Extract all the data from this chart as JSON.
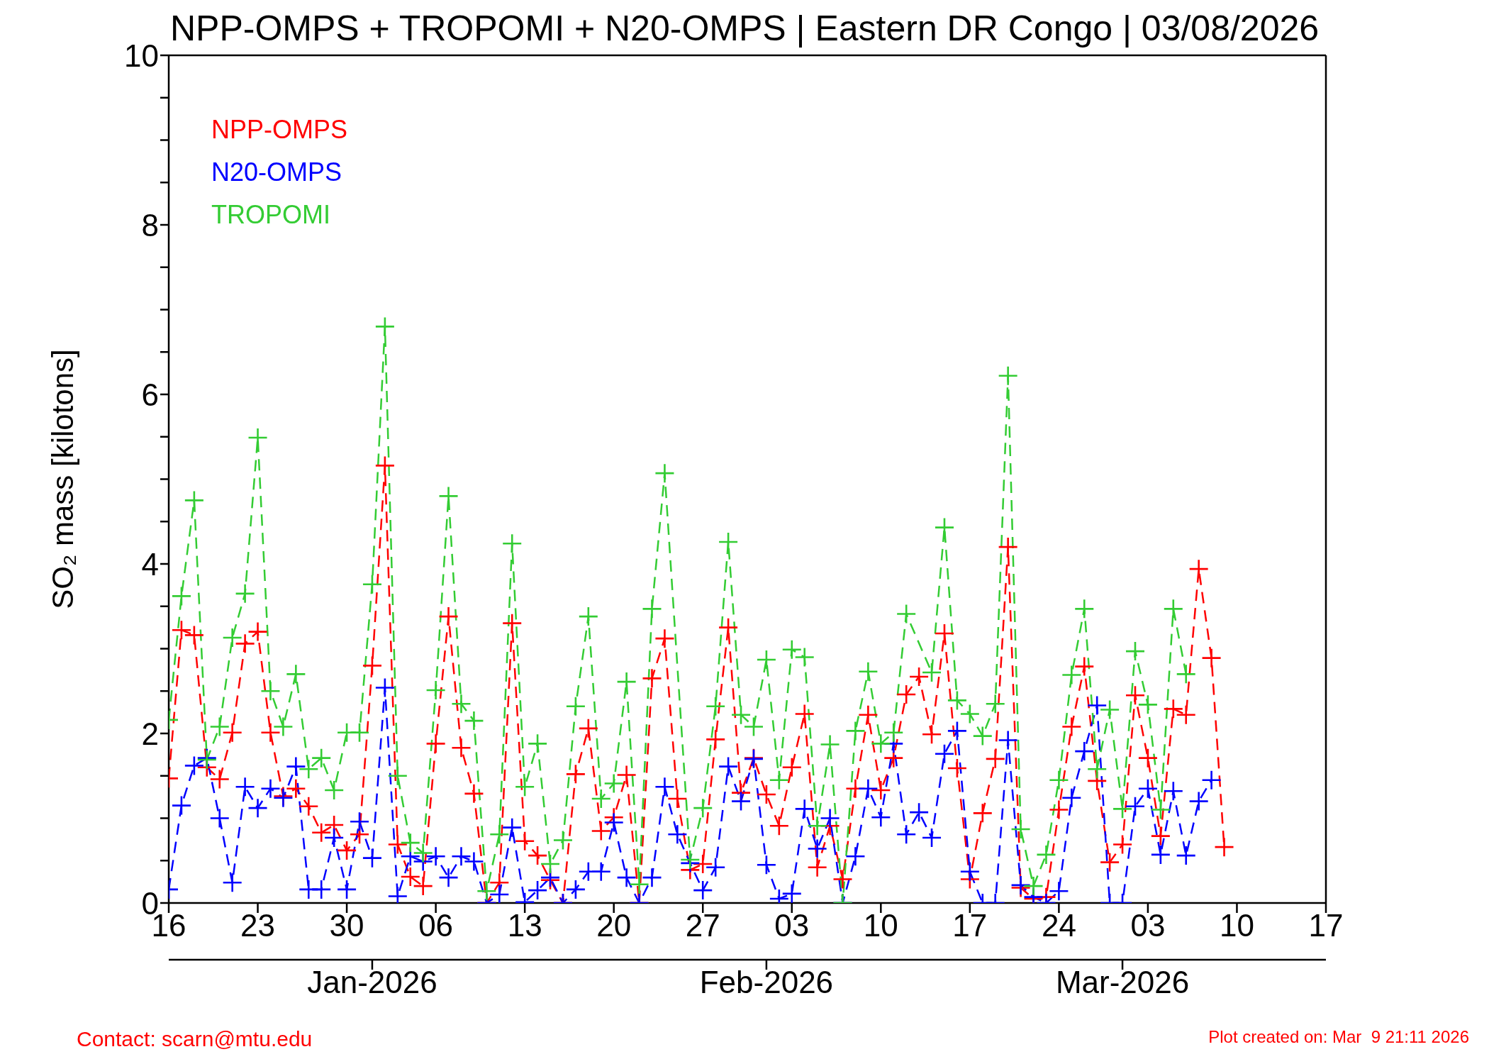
{
  "chart_data": {
    "type": "line",
    "title": "NPP-OMPS + TROPOMI + N20-OMPS | Eastern DR Congo | 03/08/2026",
    "ylabel": "SO₂ mass [kilotons]",
    "x": [
      "2025-12-16",
      "2025-12-17",
      "2025-12-18",
      "2025-12-19",
      "2025-12-20",
      "2025-12-21",
      "2025-12-22",
      "2025-12-23",
      "2025-12-24",
      "2025-12-25",
      "2025-12-26",
      "2025-12-27",
      "2025-12-28",
      "2025-12-29",
      "2025-12-30",
      "2025-12-31",
      "2026-01-01",
      "2026-01-02",
      "2026-01-03",
      "2026-01-04",
      "2026-01-05",
      "2026-01-06",
      "2026-01-07",
      "2026-01-08",
      "2026-01-09",
      "2026-01-10",
      "2026-01-11",
      "2026-01-12",
      "2026-01-13",
      "2026-01-14",
      "2026-01-15",
      "2026-01-16",
      "2026-01-17",
      "2026-01-18",
      "2026-01-19",
      "2026-01-20",
      "2026-01-21",
      "2026-01-22",
      "2026-01-23",
      "2026-01-24",
      "2026-01-25",
      "2026-01-26",
      "2026-01-27",
      "2026-01-28",
      "2026-01-29",
      "2026-01-30",
      "2026-01-31",
      "2026-02-01",
      "2026-02-02",
      "2026-02-03",
      "2026-02-04",
      "2026-02-05",
      "2026-02-06",
      "2026-02-07",
      "2026-02-08",
      "2026-02-09",
      "2026-02-10",
      "2026-02-11",
      "2026-02-12",
      "2026-02-13",
      "2026-02-14",
      "2026-02-15",
      "2026-02-16",
      "2026-02-17",
      "2026-02-18",
      "2026-02-19",
      "2026-02-20",
      "2026-02-21",
      "2026-02-22",
      "2026-02-23",
      "2026-02-24",
      "2026-02-25",
      "2026-02-26",
      "2026-02-27",
      "2026-02-28",
      "2026-03-01",
      "2026-03-02",
      "2026-03-03",
      "2026-03-04",
      "2026-03-05",
      "2026-03-06",
      "2026-03-07",
      "2026-03-08",
      "2026-03-09"
    ],
    "series": [
      {
        "name": "NPP-OMPS",
        "color": "#ff0000",
        "values": [
          1.47,
          3.22,
          3.16,
          1.6,
          1.46,
          2.01,
          3.06,
          3.2,
          2.01,
          1.26,
          1.35,
          1.14,
          0.83,
          0.92,
          0.62,
          0.81,
          2.8,
          5.16,
          0.69,
          0.31,
          0.2,
          1.88,
          3.38,
          1.83,
          1.29,
          0,
          0.24,
          3.3,
          0.73,
          0.56,
          0.27,
          0,
          1.52,
          2.06,
          0.85,
          1.01,
          1.51,
          0,
          2.65,
          3.12,
          1.23,
          0.39,
          0.46,
          1.93,
          3.25,
          1.3,
          1.71,
          1.28,
          0.91,
          1.6,
          2.23,
          0.42,
          0.91,
          0.28,
          1.35,
          2.22,
          1.33,
          1.71,
          2.46,
          2.67,
          1.99,
          3.18,
          1.59,
          0.28,
          1.06,
          1.7,
          4.2,
          0.18,
          0.05,
          0.07,
          1.1,
          2.08,
          2.79,
          1.44,
          0.48,
          0.69,
          2.45,
          1.71,
          0.79,
          2.29,
          2.22,
          3.94,
          2.89,
          0.66
        ]
      },
      {
        "name": "N20-OMPS",
        "color": "#0000ff",
        "x": [
          "2025-12-16",
          "2025-12-17",
          "2025-12-18",
          "2025-12-19",
          "2025-12-20",
          "2025-12-21",
          "2025-12-22",
          "2025-12-23",
          "2025-12-24",
          "2025-12-25",
          "2025-12-26",
          "2025-12-27",
          "2025-12-28",
          "2025-12-29",
          "2025-12-30",
          "2025-12-31",
          "2026-01-01",
          "2026-01-02",
          "2026-01-03",
          "2026-01-04",
          "2026-01-05",
          "2026-01-06",
          "2026-01-07",
          "2026-01-08",
          "2026-01-09",
          "2026-01-10",
          "2026-01-11",
          "2026-01-12",
          "2026-01-13",
          "2026-01-14",
          "2026-01-15",
          "2026-01-16",
          "2026-01-17",
          "2026-01-18",
          "2026-01-19",
          "2026-01-20",
          "2026-01-21",
          "2026-01-22",
          "2026-01-23",
          "2026-01-24",
          "2026-01-25",
          "2026-01-26",
          "2026-01-27",
          "2026-01-28",
          "2026-01-29",
          "2026-01-30",
          "2026-01-31",
          "2026-02-01",
          "2026-02-02",
          "2026-02-03",
          "2026-02-04",
          "2026-02-05",
          "2026-02-06",
          "2026-02-07",
          "2026-02-08",
          "2026-02-09",
          "2026-02-10",
          "2026-02-11",
          "2026-02-12",
          "2026-02-13",
          "2026-02-14",
          "2026-02-15",
          "2026-02-16",
          "2026-02-17",
          "2026-02-18",
          "2026-02-19",
          "2026-02-20",
          "2026-02-21",
          "2026-02-22",
          "2026-02-23",
          "2026-02-24",
          "2026-02-25",
          "2026-02-26",
          "2026-02-27",
          "2026-02-28",
          "2026-03-01",
          "2026-03-02",
          "2026-03-03",
          "2026-03-04",
          "2026-03-05",
          "2026-03-06",
          "2026-03-07",
          "2026-03-08"
        ],
        "values": [
          0.16,
          1.15,
          1.62,
          1.71,
          1.0,
          0.24,
          1.37,
          1.12,
          1.35,
          1.24,
          1.61,
          0.16,
          0.16,
          0.77,
          0.16,
          0.96,
          0.53,
          2.54,
          0.08,
          0.55,
          0.49,
          0.55,
          0.3,
          0.55,
          0.49,
          0,
          0.1,
          0.89,
          0.01,
          0.15,
          0.3,
          0,
          0.16,
          0.37,
          0.37,
          0.95,
          0.3,
          0,
          0.3,
          1.37,
          0.81,
          0.47,
          0.15,
          0.42,
          1.61,
          1.2,
          1.7,
          0.45,
          0.05,
          0.11,
          1.11,
          0.64,
          1.0,
          0,
          0.55,
          1.35,
          1.01,
          1.88,
          0.81,
          1.07,
          0.77,
          1.76,
          2.03,
          0.37,
          0,
          0,
          1.92,
          0.21,
          0.07,
          0,
          0.14,
          1.24,
          1.79,
          2.33,
          0,
          0,
          1.14,
          1.35,
          0.57,
          1.32,
          0.56,
          1.2,
          1.45
        ]
      },
      {
        "name": "TROPOMI",
        "color": "#33cc33",
        "x": [
          "2025-12-16",
          "2025-12-17",
          "2025-12-18",
          "2025-12-19",
          "2025-12-20",
          "2025-12-21",
          "2025-12-22",
          "2025-12-23",
          "2025-12-24",
          "2025-12-25",
          "2025-12-26",
          "2025-12-27",
          "2025-12-28",
          "2025-12-29",
          "2025-12-30",
          "2025-12-31",
          "2026-01-01",
          "2026-01-02",
          "2026-01-03",
          "2026-01-04",
          "2026-01-05",
          "2026-01-06",
          "2026-01-07",
          "2026-01-08",
          "2026-01-09",
          "2026-01-10",
          "2026-01-11",
          "2026-01-12",
          "2026-01-13",
          "2026-01-14",
          "2026-01-15",
          "2026-01-16",
          "2026-01-17",
          "2026-01-18",
          "2026-01-19",
          "2026-01-20",
          "2026-01-21",
          "2026-01-22",
          "2026-01-23",
          "2026-01-24",
          "2026-01-26",
          "2026-01-27",
          "2026-01-28",
          "2026-01-29",
          "2026-01-30",
          "2026-01-31",
          "2026-02-01",
          "2026-02-02",
          "2026-02-03",
          "2026-02-04",
          "2026-02-05",
          "2026-02-06",
          "2026-02-07",
          "2026-02-08",
          "2026-02-09",
          "2026-02-10",
          "2026-02-11",
          "2026-02-12",
          "2026-02-14",
          "2026-02-15",
          "2026-02-16",
          "2026-02-17",
          "2026-02-18",
          "2026-02-19",
          "2026-02-20",
          "2026-02-21",
          "2026-02-22",
          "2026-02-23",
          "2026-02-24",
          "2026-02-25",
          "2026-02-26",
          "2026-02-27",
          "2026-02-28",
          "2026-03-01",
          "2026-03-02",
          "2026-03-03",
          "2026-03-04",
          "2026-03-05",
          "2026-03-06"
        ],
        "values": [
          2.16,
          3.62,
          4.75,
          1.69,
          2.08,
          3.13,
          3.65,
          5.49,
          2.5,
          2.08,
          2.7,
          1.58,
          1.71,
          1.33,
          2.01,
          2.01,
          3.76,
          6.8,
          1.5,
          0.71,
          0.59,
          2.51,
          4.8,
          2.35,
          2.15,
          0.14,
          0.81,
          4.24,
          1.37,
          1.88,
          0.46,
          0.74,
          2.32,
          3.38,
          1.23,
          1.41,
          2.61,
          0.22,
          3.47,
          5.07,
          0.51,
          1.12,
          2.32,
          4.26,
          2.22,
          2.08,
          2.87,
          1.45,
          2.99,
          2.9,
          0.91,
          1.87,
          0,
          2.03,
          2.73,
          1.88,
          2.01,
          3.41,
          2.72,
          4.43,
          2.39,
          2.23,
          1.97,
          2.35,
          6.22,
          0.87,
          0.2,
          0.57,
          1.45,
          2.69,
          3.47,
          1.58,
          2.28,
          1.11,
          2.97,
          2.34,
          1.1,
          3.47,
          2.7
        ]
      }
    ],
    "xlim": [
      "2025-12-16",
      "2026-03-17"
    ],
    "xticks": [
      {
        "value": "2025-12-16",
        "label": "16"
      },
      {
        "value": "2025-12-23",
        "label": "23"
      },
      {
        "value": "2025-12-30",
        "label": "30"
      },
      {
        "value": "2026-01-06",
        "label": "06"
      },
      {
        "value": "2026-01-13",
        "label": "13"
      },
      {
        "value": "2026-01-20",
        "label": "20"
      },
      {
        "value": "2026-01-27",
        "label": "27"
      },
      {
        "value": "2026-02-03",
        "label": "03"
      },
      {
        "value": "2026-02-10",
        "label": "10"
      },
      {
        "value": "2026-02-17",
        "label": "17"
      },
      {
        "value": "2026-02-24",
        "label": "24"
      },
      {
        "value": "2026-03-03",
        "label": "03"
      },
      {
        "value": "2026-03-10",
        "label": "10"
      },
      {
        "value": "2026-03-17",
        "label": "17"
      }
    ],
    "x2lim": [
      "2025-12-16",
      "2026-03-17"
    ],
    "x2ticks": [
      {
        "value": "2026-01-01",
        "label": "Jan-2026"
      },
      {
        "value": "2026-02-01",
        "label": "Feb-2026"
      },
      {
        "value": "2026-03-01",
        "label": "Mar-2026"
      }
    ],
    "ylim": [
      0,
      10
    ],
    "yticks": [
      0,
      {
        "value": 0.5,
        "label": null
      },
      {
        "value": 1,
        "label": null
      },
      {
        "value": 1.5,
        "label": null
      },
      2,
      {
        "value": 2.5,
        "label": null
      },
      {
        "value": 3,
        "label": null
      },
      {
        "value": 3.5,
        "label": null
      },
      4,
      {
        "value": 4.5,
        "label": null
      },
      {
        "value": 5,
        "label": null
      },
      {
        "value": 5.5,
        "label": null
      },
      6,
      {
        "value": 6.5,
        "label": null
      },
      {
        "value": 7,
        "label": null
      },
      {
        "value": 7.5,
        "label": null
      },
      8,
      {
        "value": 8.5,
        "label": null
      },
      {
        "value": 9,
        "label": null
      },
      {
        "value": 9.5,
        "label": null
      },
      10
    ],
    "annotations": [
      "Contact: scarn@mtu.edu",
      "Plot created on: Mar  9 21:11 2026"
    ],
    "legend": "top left",
    "marker": "cross",
    "line_style": "dashed",
    "grid": false
  }
}
